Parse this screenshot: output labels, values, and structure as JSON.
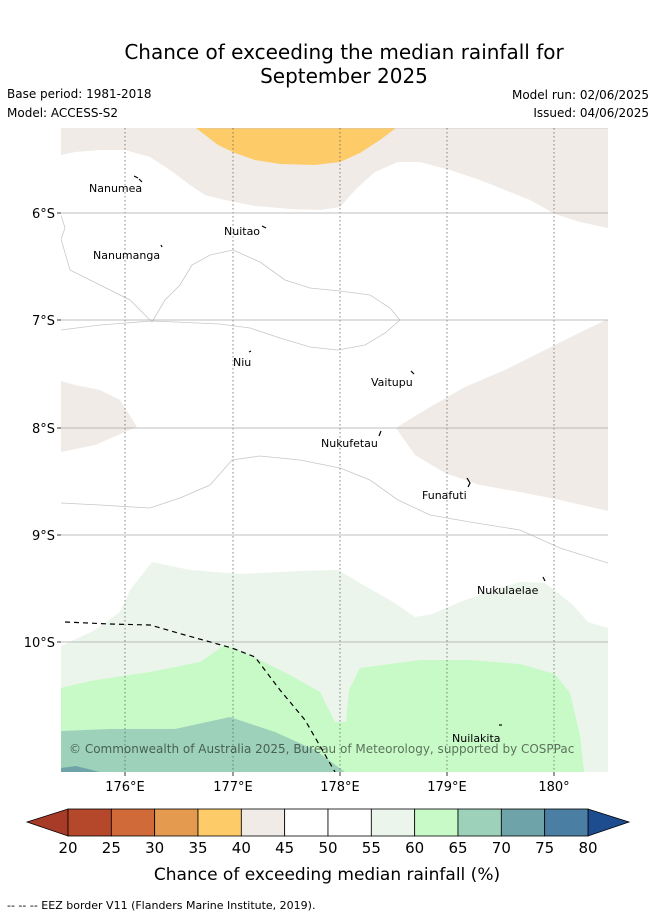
{
  "title_line1": "Chance of exceeding the median rainfall for",
  "title_line2": "September 2025",
  "meta": {
    "base_period": "Base period: 1981-2018",
    "model": "Model: ACCESS-S2",
    "model_run": "Model run: 02/06/2025",
    "issued": "Issued: 04/06/2025"
  },
  "lat_labels": [
    "6°S",
    "7°S",
    "8°S",
    "9°S",
    "10°S"
  ],
  "lon_labels": [
    "176°E",
    "177°E",
    "178°E",
    "179°E",
    "180°"
  ],
  "places": [
    "Nanumea",
    "Nuitao",
    "Nanumanga",
    "Niu",
    "Vaitupu",
    "Nukufetau",
    "Funafuti",
    "Nukulaelae",
    "Nuilakita"
  ],
  "copyright": "© Commonwealth of Australia 2025, Bureau of Meteorology, supported by COSPPac",
  "colorbar": {
    "ticks": [
      "20",
      "25",
      "30",
      "35",
      "40",
      "45",
      "50",
      "55",
      "60",
      "65",
      "70",
      "75",
      "80"
    ],
    "colors": [
      "#b5482b",
      "#d06a38",
      "#e49a4f",
      "#fecb69",
      "#f0ebe6",
      "#ffffff",
      "#ffffff",
      "#ebf5eb",
      "#c8fac8",
      "#9dd1b9",
      "#6ea4a9",
      "#4a7fa3"
    ],
    "under_color": "#a83a28",
    "over_color": "#1d4d8f",
    "label": "Chance of exceeding median rainfall (%)"
  },
  "footer": "-- -- -- EEZ border V11 (Flanders Marine Institute, 2019)."
}
